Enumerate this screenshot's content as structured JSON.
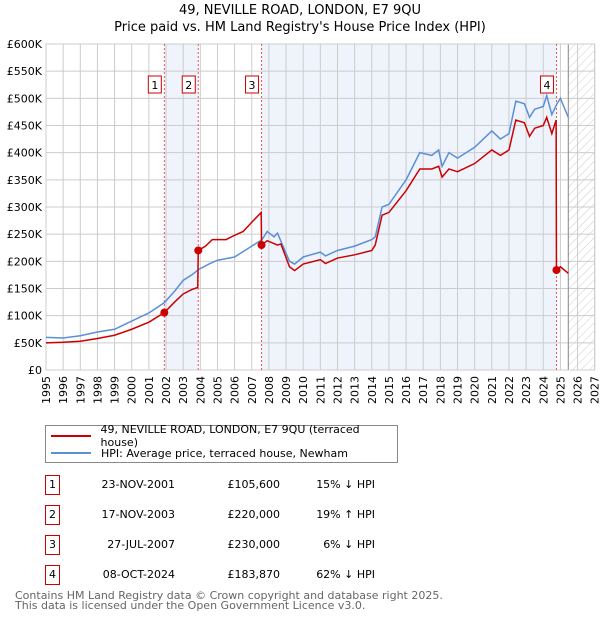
{
  "chart_data": {
    "type": "line",
    "title": "49, NEVILLE ROAD, LONDON, E7 9QU",
    "subtitle": "Price paid vs. HM Land Registry's House Price Index (HPI)",
    "xlim": [
      1995,
      2027
    ],
    "ylim": [
      0,
      600000
    ],
    "x_ticks": [
      "1995",
      "1996",
      "1997",
      "1998",
      "1999",
      "2000",
      "2001",
      "2002",
      "2003",
      "2004",
      "2005",
      "2006",
      "2007",
      "2008",
      "2009",
      "2010",
      "2011",
      "2012",
      "2013",
      "2014",
      "2015",
      "2016",
      "2017",
      "2018",
      "2019",
      "2020",
      "2021",
      "2022",
      "2023",
      "2024",
      "2025",
      "2026",
      "2027"
    ],
    "y_ticks": [
      "£0",
      "£50K",
      "£100K",
      "£150K",
      "£200K",
      "£250K",
      "£300K",
      "£350K",
      "£400K",
      "£450K",
      "£500K",
      "£550K",
      "£600K"
    ],
    "grid": true,
    "forecast_hatch_from": 2025.46,
    "shaded_ranges": [
      [
        2001.9,
        2003.88
      ],
      [
        2007.57,
        2024.77
      ]
    ],
    "series": [
      {
        "name": "49, NEVILLE ROAD, LONDON, E7 9QU (terraced house)",
        "color": "#cc0000",
        "points": [
          [
            1995,
            50
          ],
          [
            1996,
            51
          ],
          [
            1997,
            53
          ],
          [
            1998,
            58
          ],
          [
            1999,
            64
          ],
          [
            2000,
            75
          ],
          [
            2001,
            88
          ],
          [
            2001.9,
            105.6
          ],
          [
            2002.5,
            125
          ],
          [
            2003,
            140
          ],
          [
            2003.5,
            148
          ],
          [
            2003.85,
            152
          ],
          [
            2003.88,
            220
          ],
          [
            2004.3,
            228
          ],
          [
            2004.7,
            240
          ],
          [
            2005.5,
            240
          ],
          [
            2006,
            248
          ],
          [
            2006.5,
            255
          ],
          [
            2007,
            272
          ],
          [
            2007.55,
            290
          ],
          [
            2007.57,
            230
          ],
          [
            2007.9,
            238
          ],
          [
            2008.5,
            230
          ],
          [
            2008.7,
            232
          ],
          [
            2009.2,
            190
          ],
          [
            2009.5,
            183
          ],
          [
            2010,
            195
          ],
          [
            2011,
            203
          ],
          [
            2011.3,
            196
          ],
          [
            2012,
            206
          ],
          [
            2013,
            212
          ],
          [
            2014,
            220
          ],
          [
            2014.2,
            230
          ],
          [
            2014.6,
            285
          ],
          [
            2015,
            290
          ],
          [
            2016,
            330
          ],
          [
            2016.8,
            370
          ],
          [
            2017.5,
            370
          ],
          [
            2017.9,
            375
          ],
          [
            2018.1,
            355
          ],
          [
            2018.5,
            370
          ],
          [
            2019,
            365
          ],
          [
            2020,
            380
          ],
          [
            2021,
            405
          ],
          [
            2021.5,
            395
          ],
          [
            2022,
            405
          ],
          [
            2022.4,
            460
          ],
          [
            2022.9,
            455
          ],
          [
            2023.2,
            430
          ],
          [
            2023.5,
            445
          ],
          [
            2024,
            450
          ],
          [
            2024.2,
            465
          ],
          [
            2024.5,
            435
          ],
          [
            2024.75,
            460
          ],
          [
            2024.77,
            183.87
          ],
          [
            2025,
            190
          ],
          [
            2025.46,
            178
          ]
        ]
      },
      {
        "name": "HPI: Average price, terraced house, Newham",
        "color": "#5b8fd6",
        "points": [
          [
            1995,
            60
          ],
          [
            1996,
            59
          ],
          [
            1997,
            63
          ],
          [
            1998,
            70
          ],
          [
            1999,
            75
          ],
          [
            2000,
            90
          ],
          [
            2001,
            105
          ],
          [
            2001.9,
            124
          ],
          [
            2002.5,
            145
          ],
          [
            2003,
            165
          ],
          [
            2003.5,
            175
          ],
          [
            2003.9,
            185
          ],
          [
            2004.5,
            195
          ],
          [
            2005,
            202
          ],
          [
            2006,
            208
          ],
          [
            2007,
            228
          ],
          [
            2007.6,
            240
          ],
          [
            2007.9,
            255
          ],
          [
            2008.3,
            245
          ],
          [
            2008.5,
            252
          ],
          [
            2009.2,
            200
          ],
          [
            2009.5,
            195
          ],
          [
            2010,
            208
          ],
          [
            2011,
            217
          ],
          [
            2011.3,
            210
          ],
          [
            2012,
            220
          ],
          [
            2013,
            228
          ],
          [
            2014,
            240
          ],
          [
            2014.2,
            245
          ],
          [
            2014.6,
            300
          ],
          [
            2015,
            305
          ],
          [
            2016,
            350
          ],
          [
            2016.8,
            400
          ],
          [
            2017.5,
            395
          ],
          [
            2017.9,
            405
          ],
          [
            2018.1,
            375
          ],
          [
            2018.5,
            400
          ],
          [
            2019,
            390
          ],
          [
            2020,
            410
          ],
          [
            2021,
            440
          ],
          [
            2021.5,
            425
          ],
          [
            2022,
            435
          ],
          [
            2022.4,
            495
          ],
          [
            2022.9,
            490
          ],
          [
            2023.2,
            465
          ],
          [
            2023.5,
            480
          ],
          [
            2024,
            485
          ],
          [
            2024.2,
            505
          ],
          [
            2024.5,
            470
          ],
          [
            2024.8,
            490
          ],
          [
            2025,
            500
          ],
          [
            2025.46,
            465
          ]
        ]
      }
    ],
    "sales": [
      {
        "label": "1",
        "x": 2001.9,
        "price": 105600,
        "date": "23-NOV-2001",
        "price_text": "£105,600",
        "diff": "15% ↓ HPI"
      },
      {
        "label": "2",
        "x": 2003.88,
        "price": 220000,
        "date": "17-NOV-2003",
        "price_text": "£220,000",
        "diff": "19% ↑ HPI"
      },
      {
        "label": "3",
        "x": 2007.57,
        "price": 230000,
        "date": "27-JUL-2007",
        "price_text": "£230,000",
        "diff": "6% ↓ HPI"
      },
      {
        "label": "4",
        "x": 2024.77,
        "price": 183870,
        "date": "08-OCT-2024",
        "price_text": "£183,870",
        "diff": "62% ↓ HPI"
      }
    ]
  },
  "footer": {
    "line1": "Contains HM Land Registry data © Crown copyright and database right 2025.",
    "line2": "This data is licensed under the Open Government Licence v3.0."
  }
}
